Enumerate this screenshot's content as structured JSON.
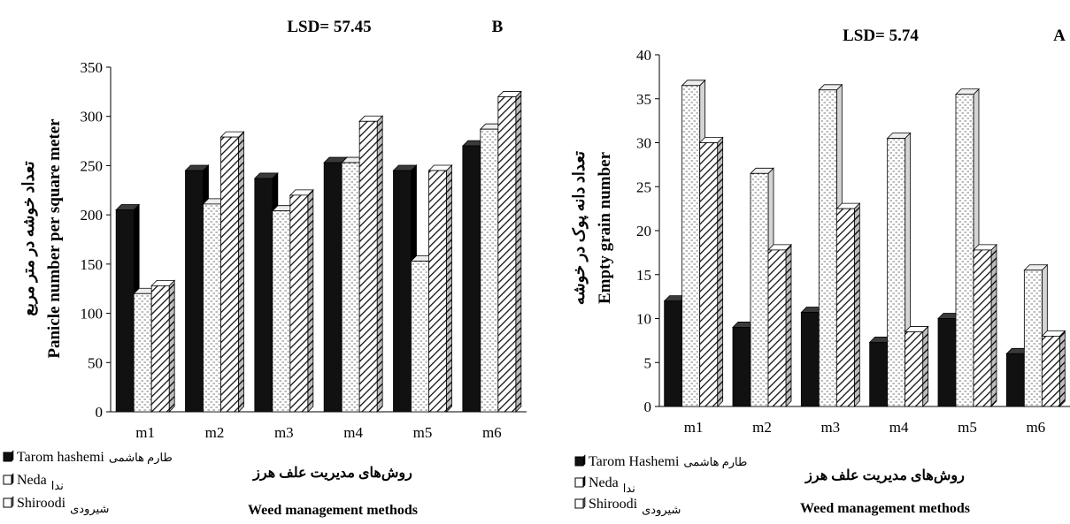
{
  "chart_data": [
    {
      "type": "bar",
      "panel_letter": "B",
      "annotation": "LSD= 57.45",
      "ylabel_fa": "تعداد خوشه در متر مربع",
      "ylabel_en": "Panicle number per square meter",
      "xlabel_fa": "روش‌های مدیریت علف هرز",
      "xlabel_en": "Weed management methods",
      "categories": [
        "m1",
        "m2",
        "m3",
        "m4",
        "m5",
        "m6"
      ],
      "ylim": [
        0,
        350
      ],
      "yticks": [
        0,
        50,
        100,
        150,
        200,
        250,
        300,
        350
      ],
      "series": [
        {
          "name": "Tarom hashemi",
          "name_fa": "طارم هاشمی",
          "pattern": "solid",
          "values": [
            205,
            245,
            237,
            253,
            245,
            270
          ]
        },
        {
          "name": "Neda",
          "name_fa": "ندا",
          "pattern": "dots",
          "values": [
            120,
            211,
            204,
            253,
            153,
            287
          ]
        },
        {
          "name": "Shiroodi",
          "name_fa": "شیرودی",
          "pattern": "hatch",
          "values": [
            128,
            279,
            220,
            295,
            245,
            320
          ]
        }
      ]
    },
    {
      "type": "bar",
      "panel_letter": "A",
      "annotation": "LSD= 5.74",
      "ylabel_fa": "تعداد دانه پوک در خوشه",
      "ylabel_en": "Empty grain number",
      "xlabel_fa": "روش‌های مدیریت علف هرز",
      "xlabel_en": "Weed management methods",
      "categories": [
        "m1",
        "m2",
        "m3",
        "m4",
        "m5",
        "m6"
      ],
      "ylim": [
        0,
        40
      ],
      "yticks": [
        0,
        5,
        10,
        15,
        20,
        25,
        30,
        35,
        40
      ],
      "series": [
        {
          "name": "Tarom Hashemi",
          "name_fa": "طارم هاشمی",
          "pattern": "solid",
          "values": [
            12,
            9,
            10.7,
            7.3,
            10,
            6
          ]
        },
        {
          "name": "Neda",
          "name_fa": "ندا",
          "pattern": "dots",
          "values": [
            36.5,
            26.5,
            36,
            30.5,
            35.5,
            15.5
          ]
        },
        {
          "name": "Shiroodi",
          "name_fa": "شیرودی",
          "pattern": "hatch",
          "values": [
            30,
            17.8,
            22.5,
            8.5,
            17.8,
            8
          ]
        }
      ]
    }
  ]
}
